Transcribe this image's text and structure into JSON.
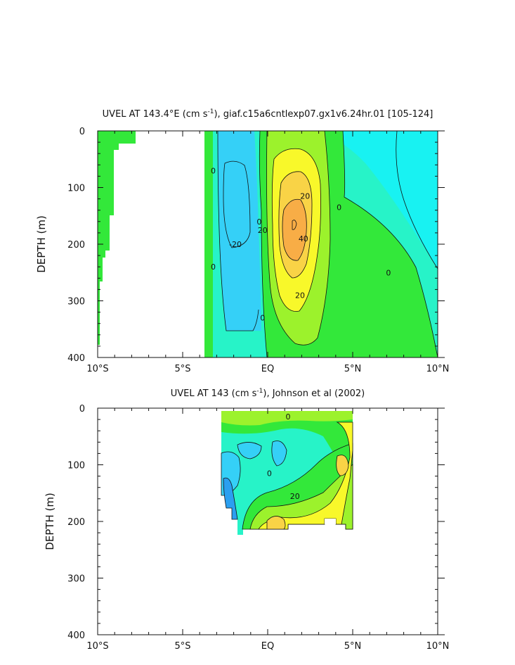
{
  "chart_data": [
    {
      "type": "contour",
      "title_prefix": "UVEL AT 143.4°E (cm s",
      "title_sup": "-1",
      "title_suffix": "), giaf.c15a6cntlexp07.gx1v6.24hr.01  [105-124]",
      "ylabel": "DEPTH (m)",
      "xlabel": "",
      "xlim": [
        -10,
        10
      ],
      "ylim": [
        400,
        0
      ],
      "x_ticks": [
        {
          "v": -10,
          "label": "10°S"
        },
        {
          "v": -5,
          "label": "5°S"
        },
        {
          "v": 0,
          "label": "EQ"
        },
        {
          "v": 5,
          "label": "5°N"
        },
        {
          "v": 10,
          "label": "10°N"
        }
      ],
      "y_ticks": [
        {
          "v": 0,
          "label": "0"
        },
        {
          "v": 100,
          "label": "100"
        },
        {
          "v": 200,
          "label": "200"
        },
        {
          "v": 300,
          "label": "300"
        },
        {
          "v": 400,
          "label": "400"
        }
      ],
      "contour_labels": [
        {
          "x": -3.2,
          "y": 70,
          "text": "0"
        },
        {
          "x": -3.2,
          "y": 240,
          "text": "0"
        },
        {
          "x": -1.9,
          "y": 200,
          "text": "-20"
        },
        {
          "x": -0.5,
          "y": 160,
          "text": "0"
        },
        {
          "x": -0.3,
          "y": 175,
          "text": "20"
        },
        {
          "x": 2.2,
          "y": 115,
          "text": "20"
        },
        {
          "x": 4.2,
          "y": 135,
          "text": "0"
        },
        {
          "x": 2.1,
          "y": 190,
          "text": "40"
        },
        {
          "x": 1.9,
          "y": 290,
          "text": "20"
        },
        {
          "x": -0.3,
          "y": 330,
          "text": "0"
        },
        {
          "x": 7.1,
          "y": 250,
          "text": "0"
        }
      ]
    },
    {
      "type": "contour",
      "title_prefix": "UVEL AT 143 (cm s",
      "title_sup": "-1",
      "title_suffix": "), Johnson et al (2002)",
      "ylabel": "DEPTH (m)",
      "xlabel": "",
      "xlim": [
        -10,
        10
      ],
      "ylim": [
        400,
        0
      ],
      "x_ticks": [
        {
          "v": -10,
          "label": "10°S"
        },
        {
          "v": -5,
          "label": "5°S"
        },
        {
          "v": 0,
          "label": "EQ"
        },
        {
          "v": 5,
          "label": "5°N"
        },
        {
          "v": 10,
          "label": "10°N"
        }
      ],
      "y_ticks": [
        {
          "v": 0,
          "label": "0"
        },
        {
          "v": 100,
          "label": "100"
        },
        {
          "v": 200,
          "label": "200"
        },
        {
          "v": 300,
          "label": "300"
        },
        {
          "v": 400,
          "label": "400"
        }
      ],
      "contour_labels": [
        {
          "x": 1.2,
          "y": 15,
          "text": "0"
        },
        {
          "x": 0.1,
          "y": 115,
          "text": "0"
        },
        {
          "x": 1.6,
          "y": 155,
          "text": "20"
        }
      ]
    }
  ],
  "colors": {
    "dark_blue": "#2b9ff0",
    "blue": "#35d0f7",
    "cyan": "#1ef5e2",
    "aqua": "#27f3c8",
    "green": "#33e83a",
    "lime": "#9cf22c",
    "yellow": "#f8f82a",
    "gold": "#f9d346",
    "orange": "#f8ad46",
    "cyan_right": "#18f2f2"
  }
}
